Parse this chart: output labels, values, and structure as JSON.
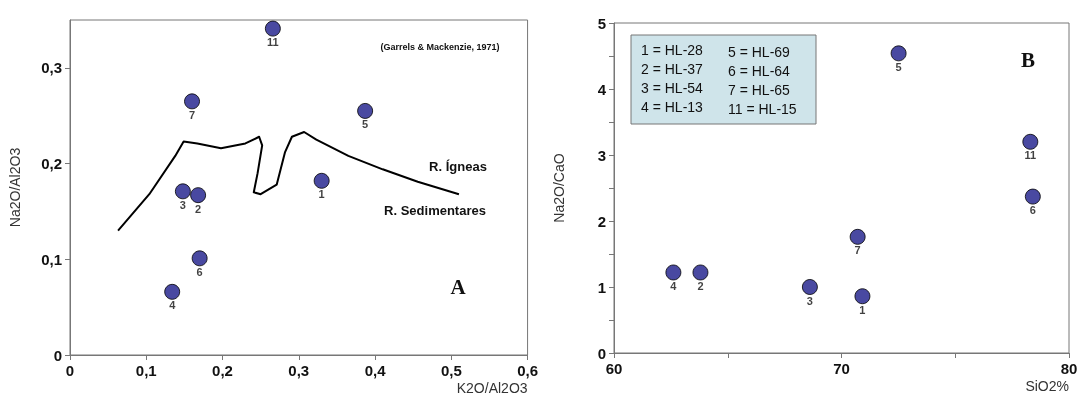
{
  "chart_data": [
    {
      "type": "scatter",
      "xlabel": "K2O/Al2O3",
      "ylabel": "Na2O/Al2O3",
      "xlim": [
        0,
        0.6
      ],
      "xticks": [
        0,
        {
          "value": 0.1,
          "label": "0,1"
        },
        {
          "value": 0.2,
          "label": "0,2"
        },
        {
          "value": 0.3,
          "label": "0,3"
        },
        {
          "value": 0.4,
          "label": "0,4"
        },
        {
          "value": 0.5,
          "label": "0,5"
        },
        {
          "value": 0.6,
          "label": "0,6"
        }
      ],
      "ylim": [
        0,
        0.35
      ],
      "yticks": [
        0,
        {
          "value": 0.1,
          "label": "0,1"
        },
        {
          "value": 0.2,
          "label": "0,2"
        },
        {
          "value": 0.3,
          "label": "0,3"
        }
      ],
      "grid": false,
      "marker": "circle",
      "series": [
        {
          "type": "scatter",
          "color": "#1c1c8a",
          "x": [
            0.33,
            0.168,
            0.148,
            0.134,
            0.387,
            0.17,
            0.16,
            0.266
          ],
          "values": [
            0.182,
            0.167,
            0.171,
            0.066,
            0.255,
            0.101,
            0.265,
            0.341
          ]
        },
        {
          "type": "line",
          "color": "#000000",
          "marker": "none",
          "x": [
            0.063,
            0.104,
            0.138,
            0.149,
            0.167,
            0.198,
            0.23,
            0.248,
            0.252,
            0.246,
            0.241,
            0.25,
            0.271,
            0.282,
            0.291,
            0.307,
            0.323,
            0.365,
            0.41,
            0.456,
            0.51
          ],
          "values": [
            0.13,
            0.168,
            0.208,
            0.223,
            0.221,
            0.216,
            0.221,
            0.228,
            0.219,
            0.19,
            0.17,
            0.168,
            0.178,
            0.212,
            0.228,
            0.233,
            0.225,
            0.208,
            0.194,
            0.181,
            0.168
          ]
        }
      ],
      "annotations": [
        {
          "text": "1",
          "x": 0.33,
          "y": 0.182
        },
        {
          "text": "2",
          "x": 0.168,
          "y": 0.167
        },
        {
          "text": "3",
          "x": 0.148,
          "y": 0.171
        },
        {
          "text": "4",
          "x": 0.134,
          "y": 0.066
        },
        {
          "text": "5",
          "x": 0.387,
          "y": 0.255
        },
        {
          "text": "6",
          "x": 0.17,
          "y": 0.101
        },
        {
          "text": "7",
          "x": 0.16,
          "y": 0.265
        },
        {
          "text": "11",
          "x": 0.266,
          "y": 0.341
        },
        "(Garrels & Mackenzie, 1971)",
        "R. Ígneas",
        "R. Sedimentares",
        "A"
      ]
    },
    {
      "type": "scatter",
      "xlabel": "SiO2%",
      "ylabel": "Na2O/CaO",
      "xlim": [
        60,
        80
      ],
      "xticks": [
        60,
        {
          "value": 65,
          "label": null
        },
        70,
        {
          "value": 75,
          "label": null
        },
        80
      ],
      "ylim": [
        0,
        5
      ],
      "yticks": [
        0,
        {
          "value": 0.5,
          "label": null
        },
        1,
        {
          "value": 1.5,
          "label": null
        },
        2,
        {
          "value": 2.5,
          "label": null
        },
        3,
        {
          "value": 3.5,
          "label": null
        },
        4,
        {
          "value": 4.5,
          "label": null
        },
        5
      ],
      "grid": false,
      "marker": "circle",
      "series": [
        {
          "type": "scatter",
          "color": "#1c1c8a",
          "x": [
            70.92,
            63.8,
            68.61,
            62.61,
            72.51,
            78.41,
            70.71,
            78.3
          ],
          "values": [
            0.86,
            1.22,
            1.0,
            1.22,
            4.54,
            2.37,
            1.76,
            3.2
          ]
        }
      ],
      "annotations": [
        {
          "text": "1",
          "x": 70.92,
          "y": 0.86
        },
        {
          "text": "2",
          "x": 63.8,
          "y": 1.22
        },
        {
          "text": "3",
          "x": 68.61,
          "y": 1.0
        },
        {
          "text": "4",
          "x": 62.61,
          "y": 1.22
        },
        {
          "text": "5",
          "x": 72.51,
          "y": 4.54
        },
        {
          "text": "6",
          "x": 78.41,
          "y": 2.37
        },
        {
          "text": "7",
          "x": 70.71,
          "y": 1.76
        },
        {
          "text": "11",
          "x": 78.3,
          "y": 3.2
        },
        "1 = HL-28",
        "2 = HL-37",
        "3 = HL-54",
        "4 = HL-13",
        "5 = HL-69",
        "6 = HL-64",
        "7 = HL-65",
        "11 = HL-15",
        "B"
      ]
    }
  ]
}
